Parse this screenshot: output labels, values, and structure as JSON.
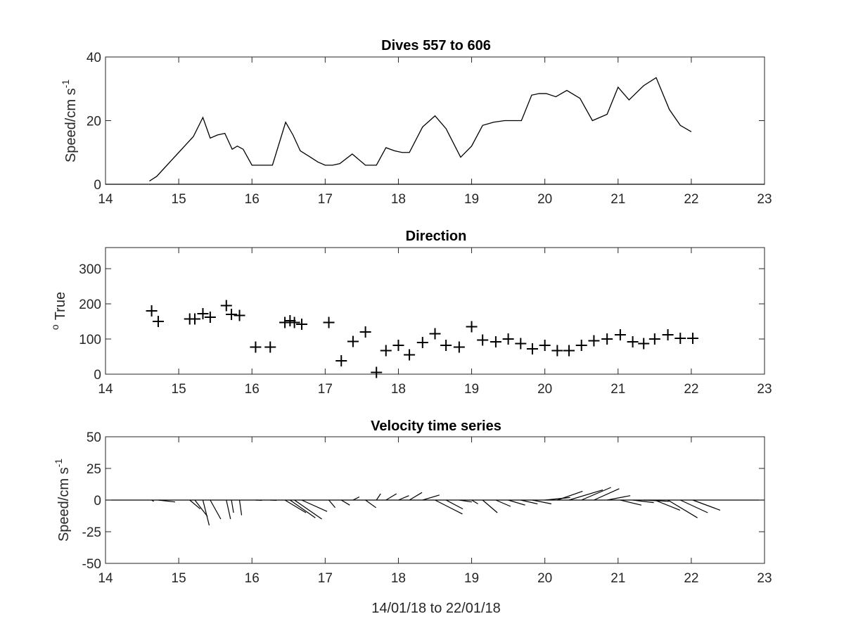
{
  "chart_data": [
    {
      "type": "line",
      "title": "Dives 557 to 606",
      "xlabel": "",
      "ylabel": "Speed/cm s",
      "ylabel_superscript": "-1",
      "xlim": [
        14,
        23
      ],
      "ylim": [
        0,
        40
      ],
      "xticks": [
        "14",
        "15",
        "16",
        "17",
        "18",
        "19",
        "20",
        "21",
        "22",
        "23"
      ],
      "yticks": [
        "0",
        "20",
        "40"
      ],
      "grid": false,
      "series": [
        {
          "x": [
            14.6,
            14.7,
            14.8,
            14.9,
            15.0,
            15.1,
            15.2,
            15.33,
            15.43,
            15.53,
            15.63,
            15.73,
            15.8,
            15.88,
            16.0,
            16.1,
            16.2,
            16.28,
            16.46,
            16.56,
            16.66,
            16.8,
            16.9,
            17.0,
            17.1,
            17.2,
            17.37,
            17.55,
            17.7,
            17.83,
            17.95,
            18.05,
            18.15,
            18.33,
            18.5,
            18.65,
            18.85,
            19.0,
            19.15,
            19.3,
            19.45,
            19.6,
            19.68,
            19.82,
            19.92,
            20.02,
            20.15,
            20.3,
            20.48,
            20.65,
            20.85,
            21.0,
            21.15,
            21.35,
            21.52,
            21.7,
            21.85,
            22.0
          ],
          "y": [
            1,
            2.5,
            5,
            7.5,
            10,
            12.5,
            15,
            21,
            14.5,
            15.5,
            16,
            11,
            12,
            11,
            6,
            6,
            6,
            6,
            19.5,
            15.5,
            10.5,
            8.5,
            7,
            6,
            6,
            6.5,
            9.5,
            6,
            6,
            11.5,
            10.5,
            10,
            10,
            18,
            21.5,
            17.5,
            8.5,
            12,
            18.5,
            19.5,
            20,
            20,
            20,
            28,
            28.5,
            28.5,
            27.5,
            29.5,
            27,
            20,
            22,
            30.5,
            26.5,
            31,
            33.5,
            23.5,
            18.5,
            16.5
          ]
        }
      ]
    },
    {
      "type": "scatter",
      "title": "Direction",
      "xlabel": "",
      "ylabel": "True",
      "ylabel_superscript": "o",
      "xlim": [
        14,
        23
      ],
      "ylim": [
        0,
        360
      ],
      "xticks": [
        "14",
        "15",
        "16",
        "17",
        "18",
        "19",
        "20",
        "21",
        "22",
        "23"
      ],
      "yticks": [
        "0",
        "100",
        "200",
        "300"
      ],
      "grid": false,
      "marker": "+",
      "series": [
        {
          "x": [
            14.63,
            14.72,
            15.15,
            15.22,
            15.33,
            15.43,
            15.65,
            15.72,
            15.83,
            16.05,
            16.25,
            16.45,
            16.52,
            16.58,
            16.68,
            17.05,
            17.22,
            17.38,
            17.55,
            17.7,
            17.83,
            18.0,
            18.15,
            18.33,
            18.5,
            18.65,
            18.83,
            19.0,
            19.15,
            19.33,
            19.5,
            19.67,
            19.83,
            20.0,
            20.17,
            20.33,
            20.5,
            20.67,
            20.85,
            21.03,
            21.2,
            21.35,
            21.5,
            21.68,
            21.85,
            22.02
          ],
          "y": [
            180,
            150,
            157,
            157,
            172,
            162,
            195,
            170,
            167,
            77,
            77,
            147,
            152,
            147,
            142,
            147,
            38,
            93,
            120,
            5,
            67,
            82,
            55,
            90,
            115,
            82,
            77,
            135,
            97,
            92,
            100,
            87,
            72,
            82,
            67,
            67,
            82,
            95,
            100,
            112,
            92,
            87,
            100,
            112,
            102,
            102
          ]
        }
      ]
    },
    {
      "type": "line",
      "title": "Velocity time series",
      "xlabel": "14/01/18 to 22/01/18",
      "ylabel": "Speed/cm s",
      "ylabel_superscript": "-1",
      "xlim": [
        14,
        23
      ],
      "ylim": [
        -50,
        50
      ],
      "xticks": [
        "14",
        "15",
        "16",
        "17",
        "18",
        "19",
        "20",
        "21",
        "22",
        "23"
      ],
      "yticks": [
        "-50",
        "-25",
        "0",
        "25",
        "50"
      ],
      "grid": false,
      "series": [
        {
          "kind": "stick",
          "x": [
            14.63,
            14.72,
            15.15,
            15.22,
            15.33,
            15.43,
            15.65,
            15.72,
            15.83,
            16.05,
            16.25,
            16.45,
            16.52,
            16.58,
            16.68,
            17.05,
            17.22,
            17.38,
            17.55,
            17.7,
            17.83,
            18.0,
            18.15,
            18.33,
            18.5,
            18.65,
            18.83,
            19.0,
            19.15,
            19.33,
            19.5,
            19.67,
            19.83,
            20.0,
            20.17,
            20.33,
            20.5,
            20.67,
            20.85,
            21.03,
            21.2,
            21.35,
            21.5,
            21.68,
            21.85,
            22.02
          ],
          "u": [
            0.1,
            0.8,
            0.5,
            0.6,
            0.3,
            0.5,
            0.2,
            0.1,
            0.1,
            0.3,
            0.3,
            1.0,
            1.2,
            1.3,
            1.2,
            0.3,
            0.4,
            0.3,
            0.5,
            0.2,
            0.5,
            0.5,
            0.6,
            0.8,
            1.3,
            0.8,
            0.6,
            0.3,
            0.7,
            0.7,
            0.8,
            0.8,
            0.9,
            1.2,
            1.2,
            1.6,
            1.4,
            1.2,
            1.1,
            1.0,
            1.0,
            1.2,
            1.2,
            1.4,
            1.3,
            1.3
          ],
          "v": [
            -1,
            -1.5,
            -7,
            -13,
            -20,
            -15,
            -15,
            -10,
            -12,
            -0.2,
            -0.2,
            -10,
            -14,
            -15,
            -9,
            -6,
            -4,
            2.5,
            -6,
            5,
            5,
            3.5,
            6,
            4,
            -11,
            -7,
            -1.5,
            -3,
            -10,
            -5,
            -4,
            -3,
            -3,
            2,
            7,
            8,
            10,
            9,
            3.5,
            -4,
            -2,
            -1,
            -8,
            -14,
            -10,
            -8
          ]
        }
      ]
    }
  ]
}
